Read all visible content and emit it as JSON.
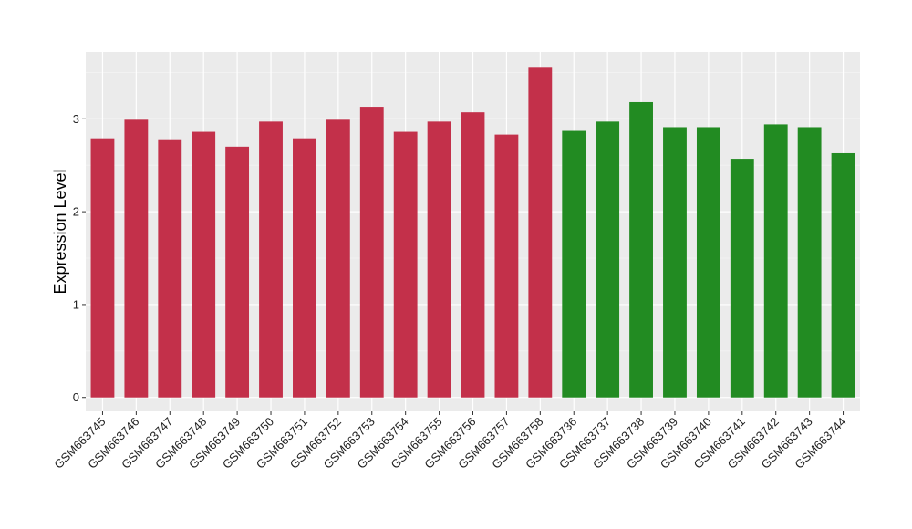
{
  "chart_data": {
    "type": "bar",
    "title": "",
    "xlabel": "",
    "ylabel": "Expression Level",
    "ylim": [
      -0.15,
      3.72
    ],
    "yticks": [
      0,
      1,
      2,
      3
    ],
    "ytick_labels": [
      "0",
      "1",
      "2",
      "3"
    ],
    "grid": true,
    "legend": "none",
    "panel_background": "#EBEBEB",
    "categories": [
      "GSM663745",
      "GSM663746",
      "GSM663747",
      "GSM663748",
      "GSM663749",
      "GSM663750",
      "GSM663751",
      "GSM663752",
      "GSM663753",
      "GSM663754",
      "GSM663755",
      "GSM663756",
      "GSM663757",
      "GSM663758",
      "GSM663736",
      "GSM663737",
      "GSM663738",
      "GSM663739",
      "GSM663740",
      "GSM663741",
      "GSM663742",
      "GSM663743",
      "GSM663744"
    ],
    "values": [
      2.79,
      2.99,
      2.78,
      2.86,
      2.7,
      2.97,
      2.79,
      2.99,
      3.13,
      2.86,
      2.97,
      3.07,
      2.83,
      3.55,
      2.87,
      2.97,
      3.18,
      2.91,
      2.91,
      2.57,
      2.94,
      2.91,
      2.63
    ],
    "colors": [
      "#C3304A",
      "#C3304A",
      "#C3304A",
      "#C3304A",
      "#C3304A",
      "#C3304A",
      "#C3304A",
      "#C3304A",
      "#C3304A",
      "#C3304A",
      "#C3304A",
      "#C3304A",
      "#C3304A",
      "#C3304A",
      "#228B22",
      "#228B22",
      "#228B22",
      "#228B22",
      "#228B22",
      "#228B22",
      "#228B22",
      "#228B22",
      "#228B22"
    ]
  }
}
